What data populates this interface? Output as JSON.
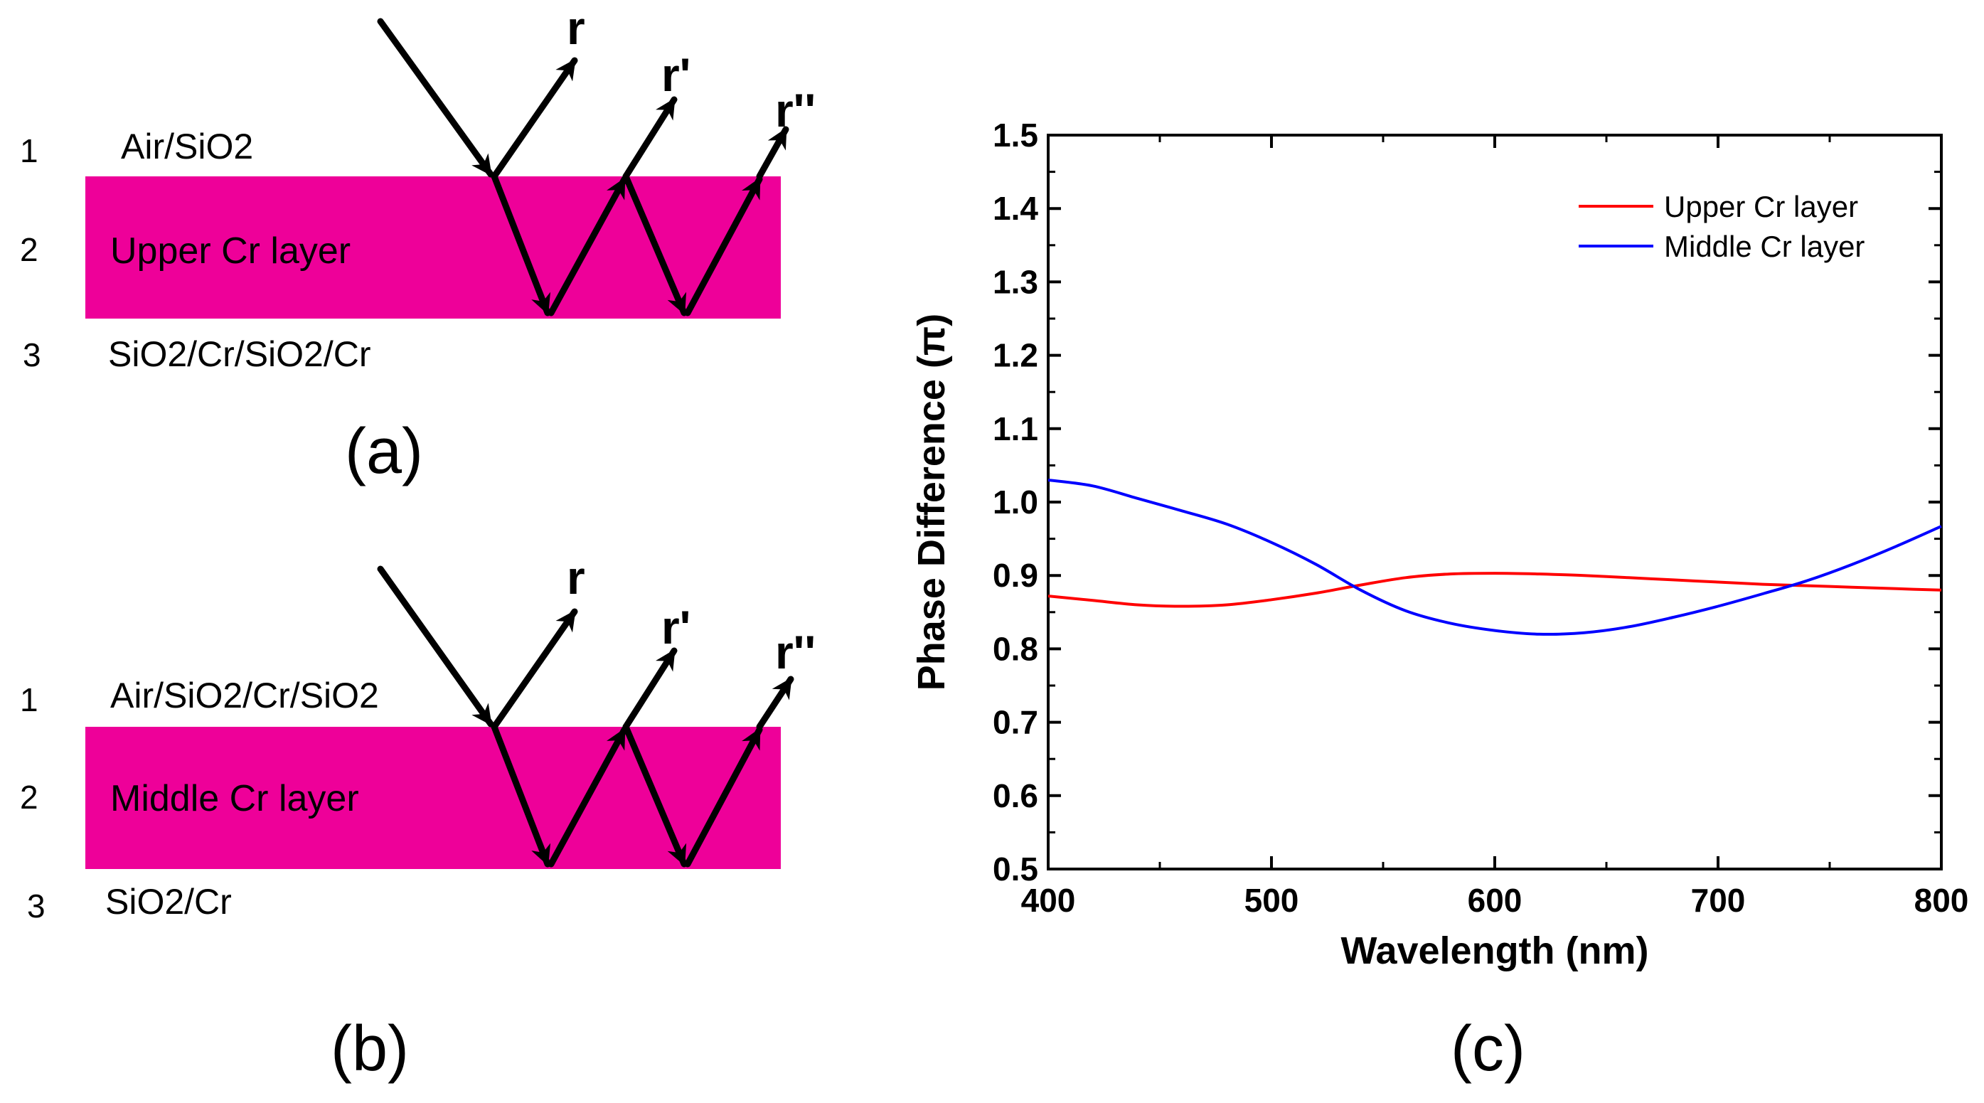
{
  "panel_a": {
    "caption": "(a)",
    "layer_numbers": [
      "1",
      "2",
      "3"
    ],
    "top_medium": "Air/SiO2",
    "layer_name": "Upper Cr layer",
    "bottom_medium": "SiO2/Cr/SiO2/Cr",
    "reflections": [
      "r",
      "r'",
      "r''"
    ],
    "layer_color": "#ee0099"
  },
  "panel_b": {
    "caption": "(b)",
    "layer_numbers": [
      "1",
      "2",
      "3"
    ],
    "top_medium": "Air/SiO2/Cr/SiO2",
    "layer_name": "Middle Cr layer",
    "bottom_medium": "SiO2/Cr",
    "reflections": [
      "r",
      "r'",
      "r''"
    ],
    "layer_color": "#ee0099"
  },
  "panel_c": {
    "caption": "(c)"
  },
  "chart_data": {
    "type": "line",
    "title": "",
    "xlabel": "Wavelength (nm)",
    "ylabel": "Phase Difference (π)",
    "xlim": [
      400,
      800
    ],
    "ylim": [
      0.5,
      1.5
    ],
    "xticks": [
      400,
      500,
      600,
      700,
      800
    ],
    "yticks": [
      0.5,
      0.6,
      0.7,
      0.8,
      0.9,
      1.0,
      1.1,
      1.2,
      1.3,
      1.4,
      1.5
    ],
    "ytick_labels": [
      "0.5",
      "0.6",
      "0.7",
      "0.8",
      "0.9",
      "1.0",
      "1.1",
      "1.2",
      "1.3",
      "1.4",
      "1.5"
    ],
    "legend_position": "top-right",
    "series": [
      {
        "name": "Upper Cr layer",
        "color": "#ff0000",
        "x": [
          400,
          420,
          440,
          460,
          480,
          500,
          520,
          540,
          560,
          580,
          600,
          620,
          640,
          660,
          680,
          700,
          720,
          740,
          760,
          780,
          800
        ],
        "y": [
          0.872,
          0.866,
          0.86,
          0.858,
          0.86,
          0.867,
          0.876,
          0.887,
          0.897,
          0.902,
          0.903,
          0.902,
          0.9,
          0.897,
          0.894,
          0.891,
          0.888,
          0.886,
          0.884,
          0.882,
          0.88
        ]
      },
      {
        "name": "Middle Cr layer",
        "color": "#0000ff",
        "x": [
          400,
          420,
          440,
          460,
          480,
          500,
          520,
          540,
          560,
          580,
          600,
          620,
          640,
          660,
          680,
          700,
          720,
          740,
          760,
          780,
          800
        ],
        "y": [
          1.03,
          1.022,
          1.005,
          0.988,
          0.97,
          0.945,
          0.915,
          0.88,
          0.852,
          0.835,
          0.825,
          0.82,
          0.822,
          0.83,
          0.843,
          0.858,
          0.875,
          0.893,
          0.915,
          0.94,
          0.967
        ]
      }
    ]
  }
}
